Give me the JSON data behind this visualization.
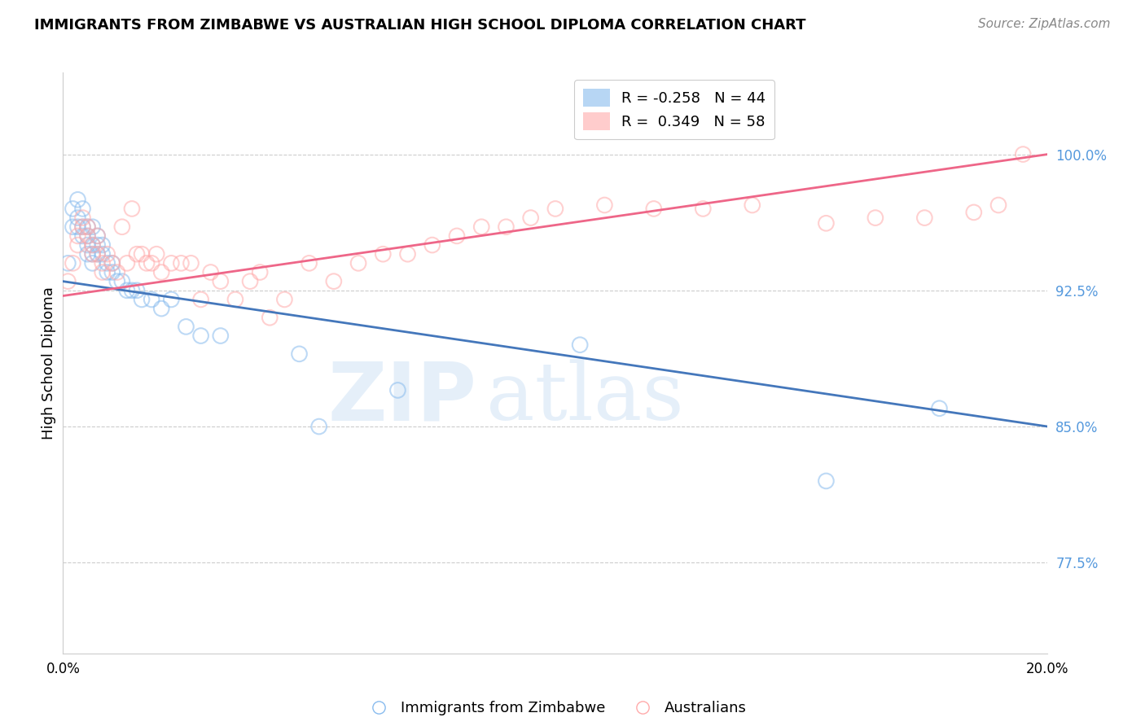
{
  "title": "IMMIGRANTS FROM ZIMBABWE VS AUSTRALIAN HIGH SCHOOL DIPLOMA CORRELATION CHART",
  "source": "Source: ZipAtlas.com",
  "ylabel": "High School Diploma",
  "ytick_labels": [
    "77.5%",
    "85.0%",
    "92.5%",
    "100.0%"
  ],
  "ytick_values": [
    0.775,
    0.85,
    0.925,
    1.0
  ],
  "xlim": [
    0.0,
    0.2
  ],
  "ylim": [
    0.725,
    1.045
  ],
  "blue_color": "#88BBEE",
  "pink_color": "#FFAAAA",
  "blue_line_color": "#4477BB",
  "pink_line_color": "#EE6688",
  "watermark_zip": "ZIP",
  "watermark_atlas": "atlas",
  "label1": "Immigrants from Zimbabwe",
  "label2": "Australians",
  "legend_r1_r": "-0.258",
  "legend_r1_n": "44",
  "legend_r2_r": "0.349",
  "legend_r2_n": "58",
  "blue_scatter_x": [
    0.001,
    0.002,
    0.002,
    0.003,
    0.003,
    0.003,
    0.004,
    0.004,
    0.004,
    0.005,
    0.005,
    0.005,
    0.005,
    0.006,
    0.006,
    0.006,
    0.006,
    0.007,
    0.007,
    0.007,
    0.008,
    0.008,
    0.009,
    0.009,
    0.01,
    0.01,
    0.011,
    0.012,
    0.013,
    0.014,
    0.015,
    0.016,
    0.018,
    0.02,
    0.022,
    0.025,
    0.028,
    0.032,
    0.048,
    0.052,
    0.068,
    0.105,
    0.155,
    0.178
  ],
  "blue_scatter_y": [
    0.94,
    0.96,
    0.97,
    0.975,
    0.96,
    0.965,
    0.97,
    0.96,
    0.955,
    0.96,
    0.955,
    0.95,
    0.945,
    0.96,
    0.95,
    0.945,
    0.94,
    0.955,
    0.95,
    0.945,
    0.95,
    0.945,
    0.94,
    0.935,
    0.94,
    0.935,
    0.93,
    0.93,
    0.925,
    0.925,
    0.925,
    0.92,
    0.92,
    0.915,
    0.92,
    0.905,
    0.9,
    0.9,
    0.89,
    0.85,
    0.87,
    0.895,
    0.82,
    0.86
  ],
  "pink_scatter_x": [
    0.001,
    0.002,
    0.003,
    0.003,
    0.004,
    0.004,
    0.005,
    0.005,
    0.006,
    0.006,
    0.007,
    0.007,
    0.008,
    0.008,
    0.009,
    0.01,
    0.011,
    0.012,
    0.013,
    0.014,
    0.015,
    0.016,
    0.017,
    0.018,
    0.019,
    0.02,
    0.022,
    0.024,
    0.026,
    0.028,
    0.03,
    0.032,
    0.035,
    0.038,
    0.04,
    0.042,
    0.045,
    0.05,
    0.055,
    0.06,
    0.065,
    0.07,
    0.075,
    0.08,
    0.085,
    0.09,
    0.095,
    0.1,
    0.11,
    0.12,
    0.13,
    0.14,
    0.155,
    0.165,
    0.175,
    0.185,
    0.19,
    0.195
  ],
  "pink_scatter_y": [
    0.93,
    0.94,
    0.95,
    0.955,
    0.965,
    0.96,
    0.96,
    0.955,
    0.95,
    0.945,
    0.955,
    0.945,
    0.94,
    0.935,
    0.945,
    0.94,
    0.935,
    0.96,
    0.94,
    0.97,
    0.945,
    0.945,
    0.94,
    0.94,
    0.945,
    0.935,
    0.94,
    0.94,
    0.94,
    0.92,
    0.935,
    0.93,
    0.92,
    0.93,
    0.935,
    0.91,
    0.92,
    0.94,
    0.93,
    0.94,
    0.945,
    0.945,
    0.95,
    0.955,
    0.96,
    0.96,
    0.965,
    0.97,
    0.972,
    0.97,
    0.97,
    0.972,
    0.962,
    0.965,
    0.965,
    0.968,
    0.972,
    1.0
  ],
  "blue_trendline_x": [
    0.0,
    0.2
  ],
  "blue_trendline_y": [
    0.93,
    0.85
  ],
  "pink_trendline_x": [
    0.0,
    0.2
  ],
  "pink_trendline_y": [
    0.922,
    1.0
  ],
  "grid_color": "#CCCCCC",
  "spine_color": "#CCCCCC",
  "ytick_color": "#5599DD",
  "title_fontsize": 13,
  "axis_fontsize": 13,
  "tick_fontsize": 12
}
